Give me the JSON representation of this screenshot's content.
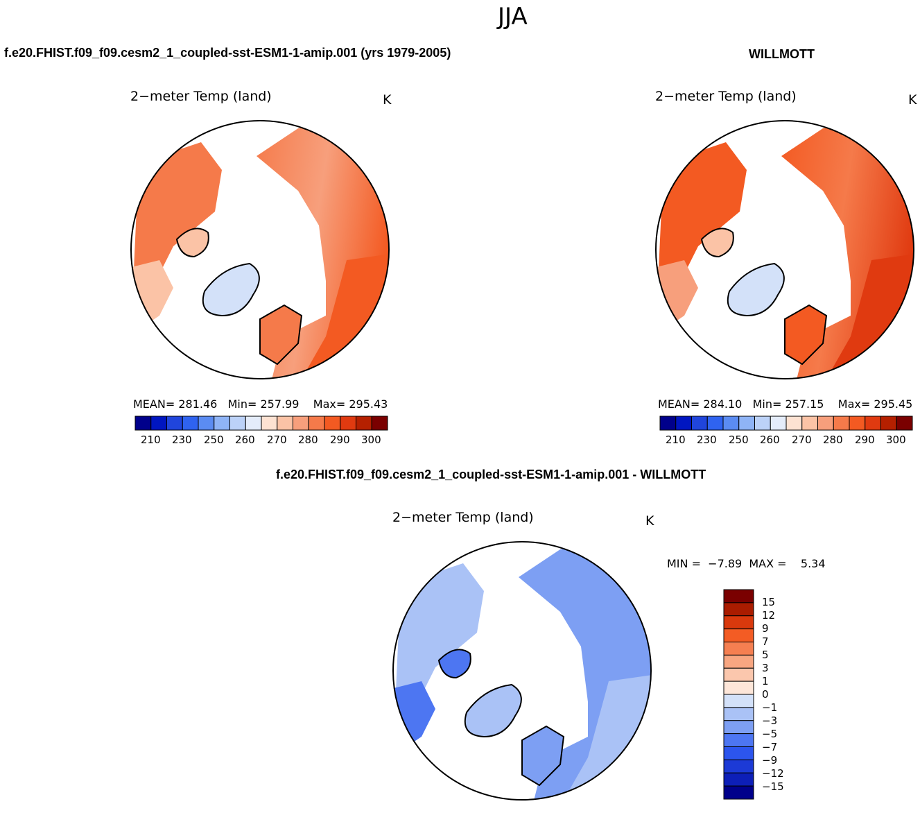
{
  "chart_data": {
    "type": "heatmap",
    "title": "JJA",
    "panels": [
      {
        "heading": "f.e20.FHIST.f09_f09.cesm2_1_coupled-sst-ESM1-1-amip.001 (yrs 1979-2005)",
        "subtitle": "2−meter Temp (land)",
        "units": "K",
        "mean_label": "MEAN=",
        "mean": "281.46",
        "min_label": "Min=",
        "min": "257.99",
        "max_label": "Max=",
        "max": "295.43",
        "colorbar_ticks": [
          "210",
          "230",
          "250",
          "260",
          "270",
          "280",
          "290",
          "300"
        ]
      },
      {
        "heading": "WILLMOTT",
        "subtitle": "2−meter Temp (land)",
        "units": "K",
        "mean_label": "MEAN=",
        "mean": "284.10",
        "min_label": "Min=",
        "min": "257.15",
        "max_label": "Max=",
        "max": "295.45",
        "colorbar_ticks": [
          "210",
          "230",
          "250",
          "260",
          "270",
          "280",
          "290",
          "300"
        ]
      },
      {
        "heading": "f.e20.FHIST.f09_f09.cesm2_1_coupled-sst-ESM1-1-amip.001 - WILLMOTT",
        "subtitle": "2−meter Temp (land)",
        "units": "K",
        "min_label": "MIN =",
        "min": "−7.89",
        "max_label": "MAX =",
        "max": "5.34",
        "colorbar_ticks": [
          "15",
          "12",
          "9",
          "7",
          "5",
          "3",
          "1",
          "0",
          "−1",
          "−3",
          "−5",
          "−7",
          "−9",
          "−12",
          "−15"
        ]
      }
    ],
    "abs_colors": [
      "#00008b",
      "#0016c1",
      "#2045dc",
      "#2f63f0",
      "#5b8cf2",
      "#8fb4f6",
      "#bcd2f8",
      "#e4ecfa",
      "#fde2d2",
      "#fbc3a6",
      "#f79f7c",
      "#f57a4a",
      "#f35a22",
      "#e03a10",
      "#b52000",
      "#7a0000"
    ],
    "diff_colors": [
      "#00008b",
      "#0d1fb8",
      "#1c3ad6",
      "#2c55ee",
      "#4d76f2",
      "#7d9ff3",
      "#aac2f6",
      "#d3e1f9",
      "#fde6d9",
      "#fbc7ad",
      "#f8a681",
      "#f57f51",
      "#f35c24",
      "#d9390d",
      "#aa1c00",
      "#7a0000"
    ]
  }
}
